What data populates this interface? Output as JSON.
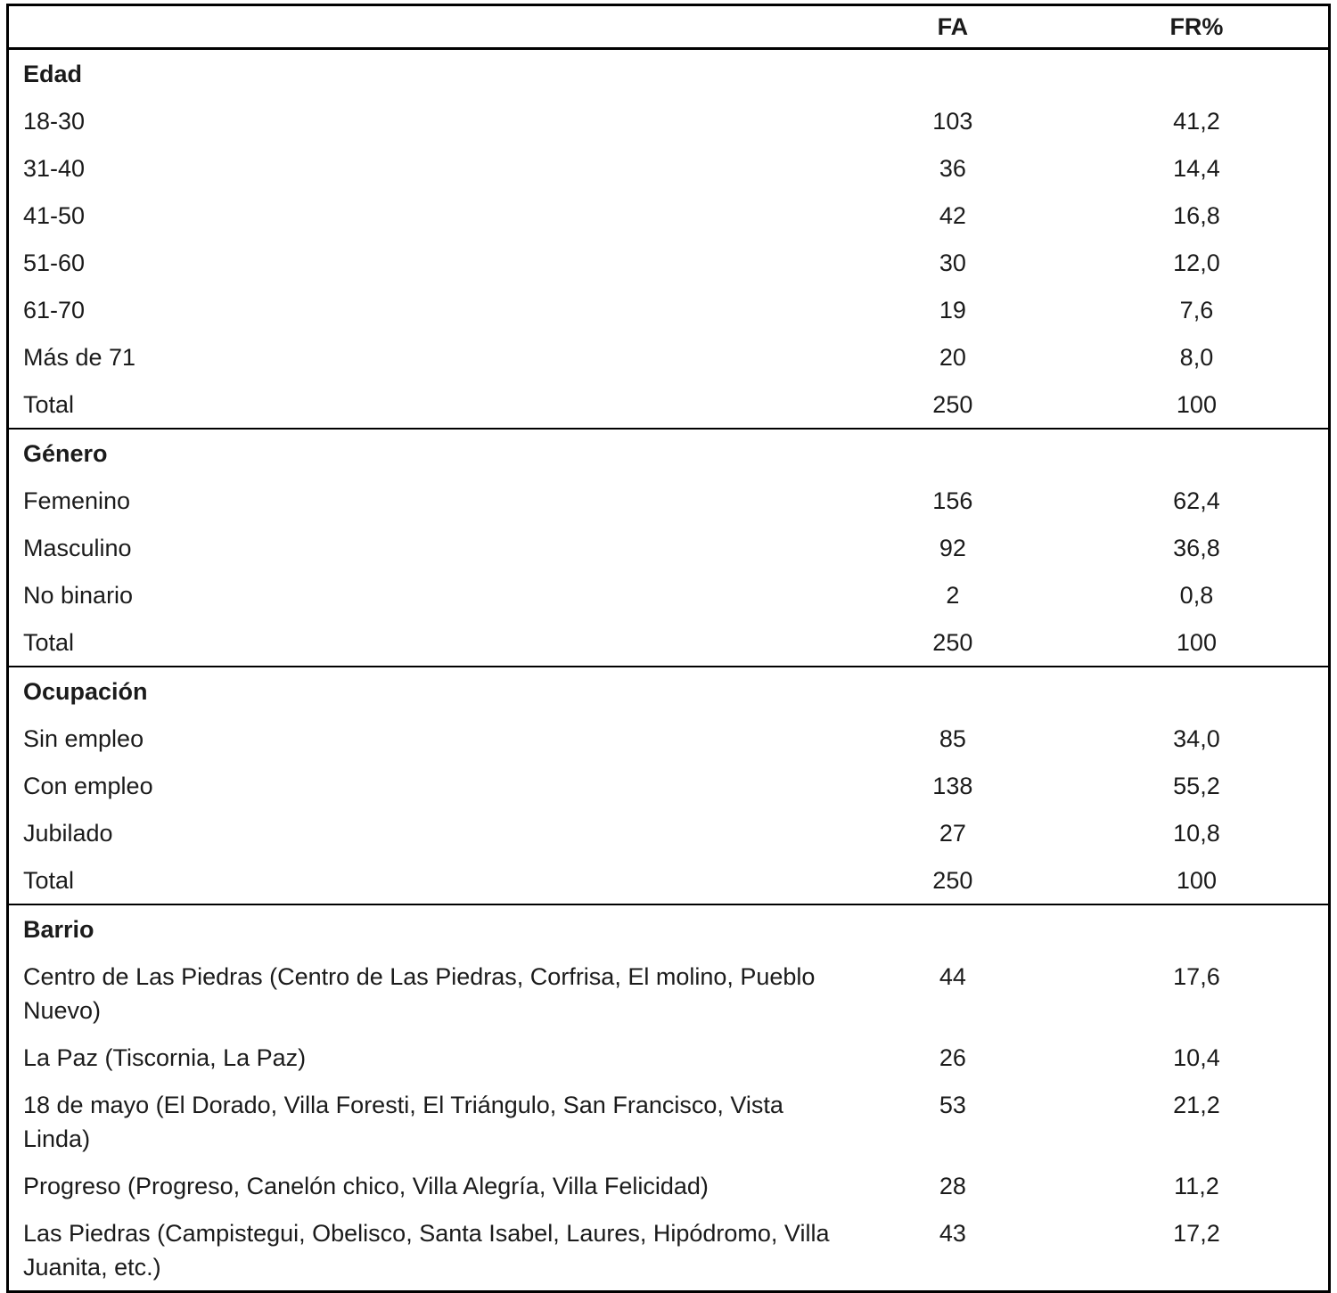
{
  "table": {
    "columns": {
      "label": "",
      "fa": "FA",
      "fr": "FR%"
    },
    "sections": [
      {
        "header": "Edad",
        "rows": [
          {
            "label": "18-30",
            "fa": "103",
            "fr": "41,2"
          },
          {
            "label": "31-40",
            "fa": "36",
            "fr": "14,4"
          },
          {
            "label": "41-50",
            "fa": "42",
            "fr": "16,8"
          },
          {
            "label": "51-60",
            "fa": "30",
            "fr": "12,0"
          },
          {
            "label": "61-70",
            "fa": "19",
            "fr": "7,6"
          },
          {
            "label": "Más de 71",
            "fa": "20",
            "fr": "8,0"
          },
          {
            "label": "Total",
            "fa": "250",
            "fr": "100"
          }
        ]
      },
      {
        "header": "Género",
        "rows": [
          {
            "label": "Femenino",
            "fa": "156",
            "fr": "62,4"
          },
          {
            "label": "Masculino",
            "fa": "92",
            "fr": "36,8"
          },
          {
            "label": "No binario",
            "fa": "2",
            "fr": "0,8"
          },
          {
            "label": "Total",
            "fa": "250",
            "fr": "100"
          }
        ]
      },
      {
        "header": "Ocupación",
        "rows": [
          {
            "label": "Sin empleo",
            "fa": "85",
            "fr": "34,0"
          },
          {
            "label": "Con empleo",
            "fa": "138",
            "fr": "55,2"
          },
          {
            "label": "Jubilado",
            "fa": "27",
            "fr": "10,8"
          },
          {
            "label": "Total",
            "fa": "250",
            "fr": "100"
          }
        ]
      },
      {
        "header": "Barrio",
        "rows": [
          {
            "label": "Centro de Las Piedras (Centro de Las Piedras, Corfrisa, El molino, Pueblo Nuevo)",
            "fa": "44",
            "fr": "17,6"
          },
          {
            "label": "La Paz (Tiscornia, La Paz)",
            "fa": "26",
            "fr": "10,4"
          },
          {
            "label": "18 de mayo (El Dorado, Villa Foresti, El Triángulo, San Francisco, Vista Linda)",
            "fa": "53",
            "fr": "21,2"
          },
          {
            "label": "Progreso (Progreso, Canelón chico, Villa Alegría, Villa Felicidad)",
            "fa": "28",
            "fr": "11,2"
          },
          {
            "label": "Las Piedras (Campistegui, Obelisco, Santa Isabel, Laures, Hipódromo, Villa Juanita, etc.)",
            "fa": "43",
            "fr": "17,2"
          }
        ]
      }
    ]
  }
}
